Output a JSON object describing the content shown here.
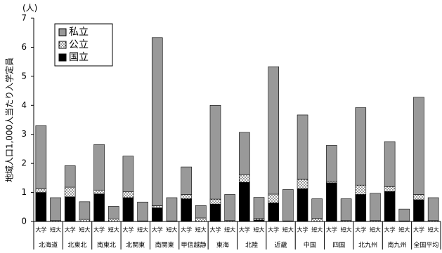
{
  "chart_data": {
    "type": "stacked_bar",
    "y_unit": "(人)",
    "y_label": "地域人口1,000人当たり入学定員",
    "categories": [
      "大学",
      "短大",
      "大学",
      "短大",
      "大学",
      "短大",
      "大学",
      "短大",
      "大学",
      "短大",
      "大学",
      "短大",
      "大学",
      "短大",
      "大学",
      "短大",
      "大学",
      "短大",
      "大学",
      "短大",
      "大学",
      "短大",
      "大学",
      "短大",
      "大学",
      "短大",
      "大学",
      "短大"
    ],
    "groups": [
      "北海道",
      "北東北",
      "南東北",
      "北関東",
      "南関東",
      "甲信越静",
      "東海",
      "北陸",
      "近畿",
      "中国",
      "四国",
      "北九州",
      "南九州",
      "全国平均"
    ],
    "series": [
      {
        "name": "国立",
        "color": "#000000",
        "values": [
          1.0,
          0,
          0.85,
          0,
          0.95,
          0,
          0.82,
          0,
          0.47,
          0,
          0.78,
          0,
          0.6,
          0,
          1.35,
          0.05,
          0.64,
          0,
          1.13,
          0,
          1.33,
          0,
          0.93,
          0,
          1.03,
          0,
          0.75,
          0
        ]
      },
      {
        "name": "公立",
        "color": "#ffffff",
        "pattern": "dots",
        "values": [
          0.12,
          0.03,
          0.33,
          0.07,
          0.13,
          0.08,
          0.2,
          0.02,
          0.07,
          0.02,
          0.15,
          0.12,
          0.17,
          0.03,
          0.25,
          0.05,
          0.3,
          0.02,
          0.32,
          0.1,
          0.05,
          0.03,
          0.32,
          0.03,
          0.17,
          0.02,
          0.18,
          0.03
        ]
      },
      {
        "name": "私立",
        "color": "#999999",
        "values": [
          2.18,
          0.79,
          0.74,
          0.61,
          1.57,
          0.44,
          1.23,
          0.65,
          5.79,
          0.8,
          0.95,
          0.43,
          3.23,
          0.9,
          1.47,
          0.73,
          4.39,
          1.08,
          2.22,
          0.68,
          1.24,
          0.75,
          2.67,
          0.94,
          1.55,
          0.41,
          3.35,
          0.79
        ]
      }
    ],
    "ylim": [
      0,
      7
    ],
    "yticks": [
      0,
      1,
      2,
      3,
      4,
      5,
      6,
      7
    ],
    "legend": "top-left"
  }
}
